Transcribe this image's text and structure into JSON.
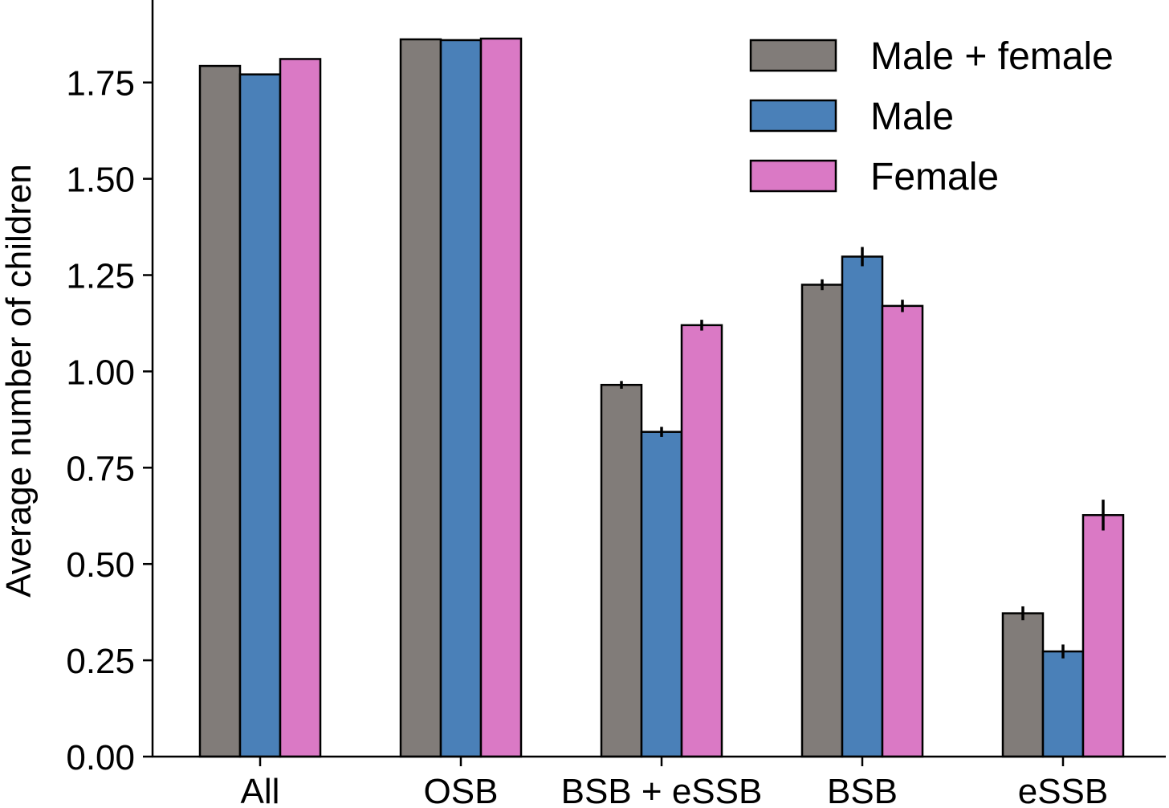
{
  "chart_data": {
    "type": "bar",
    "ylabel": "Average number of children",
    "xlabel": "",
    "ylim": [
      0,
      1.96
    ],
    "yticks": [
      "0.00",
      "0.25",
      "0.50",
      "0.75",
      "1.00",
      "1.25",
      "1.50",
      "1.75"
    ],
    "categories": [
      "All",
      "OSB",
      "BSB + eSSB",
      "BSB",
      "eSSB"
    ],
    "legend_position": "top-right",
    "grid": false,
    "series": [
      {
        "name": "Male + female",
        "color": "#817c79",
        "values": [
          1.793,
          1.862,
          0.965,
          1.225,
          0.372
        ],
        "errors": [
          0.002,
          0.002,
          0.01,
          0.014,
          0.018
        ]
      },
      {
        "name": "Male",
        "color": "#4a80b8",
        "values": [
          1.771,
          1.86,
          0.843,
          1.298,
          0.273
        ],
        "errors": [
          0.002,
          0.002,
          0.013,
          0.025,
          0.018
        ]
      },
      {
        "name": "Female",
        "color": "#da79c5",
        "values": [
          1.811,
          1.864,
          1.12,
          1.17,
          0.627
        ],
        "errors": [
          0.002,
          0.002,
          0.014,
          0.016,
          0.04
        ]
      }
    ]
  }
}
